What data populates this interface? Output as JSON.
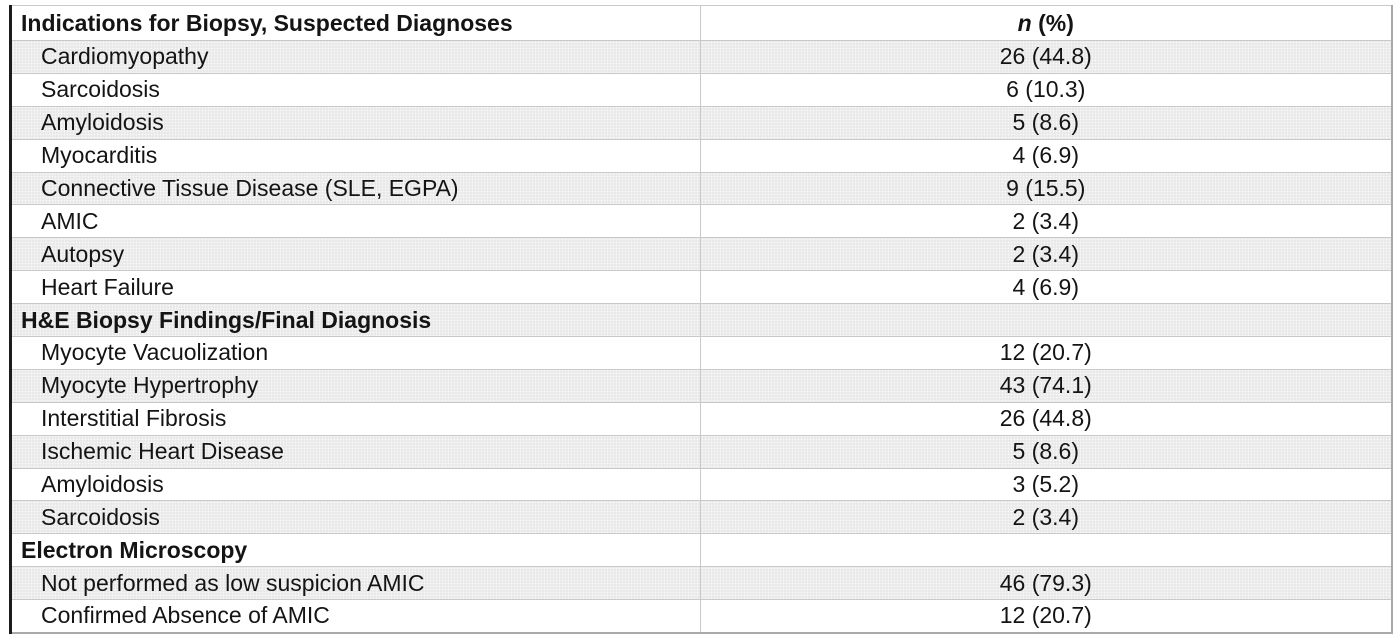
{
  "table": {
    "header": {
      "label": "Indications for Biopsy, Suspected Diagnoses",
      "value_n": "n",
      "value_pct": "(%)"
    },
    "rows": [
      {
        "type": "item",
        "label": "Cardiomyopathy",
        "value": "26 (44.8)"
      },
      {
        "type": "item",
        "label": "Sarcoidosis",
        "value": "6 (10.3)"
      },
      {
        "type": "item",
        "label": "Amyloidosis",
        "value": "5 (8.6)"
      },
      {
        "type": "item",
        "label": "Myocarditis",
        "value": "4 (6.9)"
      },
      {
        "type": "item",
        "label": "Connective Tissue Disease (SLE, EGPA)",
        "value": "9 (15.5)"
      },
      {
        "type": "item",
        "label": "AMIC",
        "value": "2 (3.4)"
      },
      {
        "type": "item",
        "label": "Autopsy",
        "value": "2 (3.4)"
      },
      {
        "type": "item",
        "label": "Heart Failure",
        "value": "4 (6.9)"
      },
      {
        "type": "section",
        "label": "H&E Biopsy Findings/Final Diagnosis",
        "value": ""
      },
      {
        "type": "item",
        "label": "Myocyte Vacuolization",
        "value": "12 (20.7)"
      },
      {
        "type": "item",
        "label": "Myocyte Hypertrophy",
        "value": "43 (74.1)"
      },
      {
        "type": "item",
        "label": "Interstitial Fibrosis",
        "value": "26 (44.8)"
      },
      {
        "type": "item",
        "label": "Ischemic Heart Disease",
        "value": "5 (8.6)"
      },
      {
        "type": "item",
        "label": "Amyloidosis",
        "value": "3 (5.2)"
      },
      {
        "type": "item",
        "label": "Sarcoidosis",
        "value": "2 (3.4)"
      },
      {
        "type": "section",
        "label": "Electron Microscopy",
        "value": ""
      },
      {
        "type": "item",
        "label": "Not performed as low suspicion AMIC",
        "value": "46 (79.3)"
      },
      {
        "type": "item",
        "label": "Confirmed Absence of AMIC",
        "value": "12 (20.7)"
      }
    ],
    "colors": {
      "stripe_background": "#e9e9e9",
      "inner_border": "#c9c9c9",
      "outer_border": "#a9a9a9",
      "left_border": "#1c1c1c",
      "text": "#141414"
    }
  }
}
